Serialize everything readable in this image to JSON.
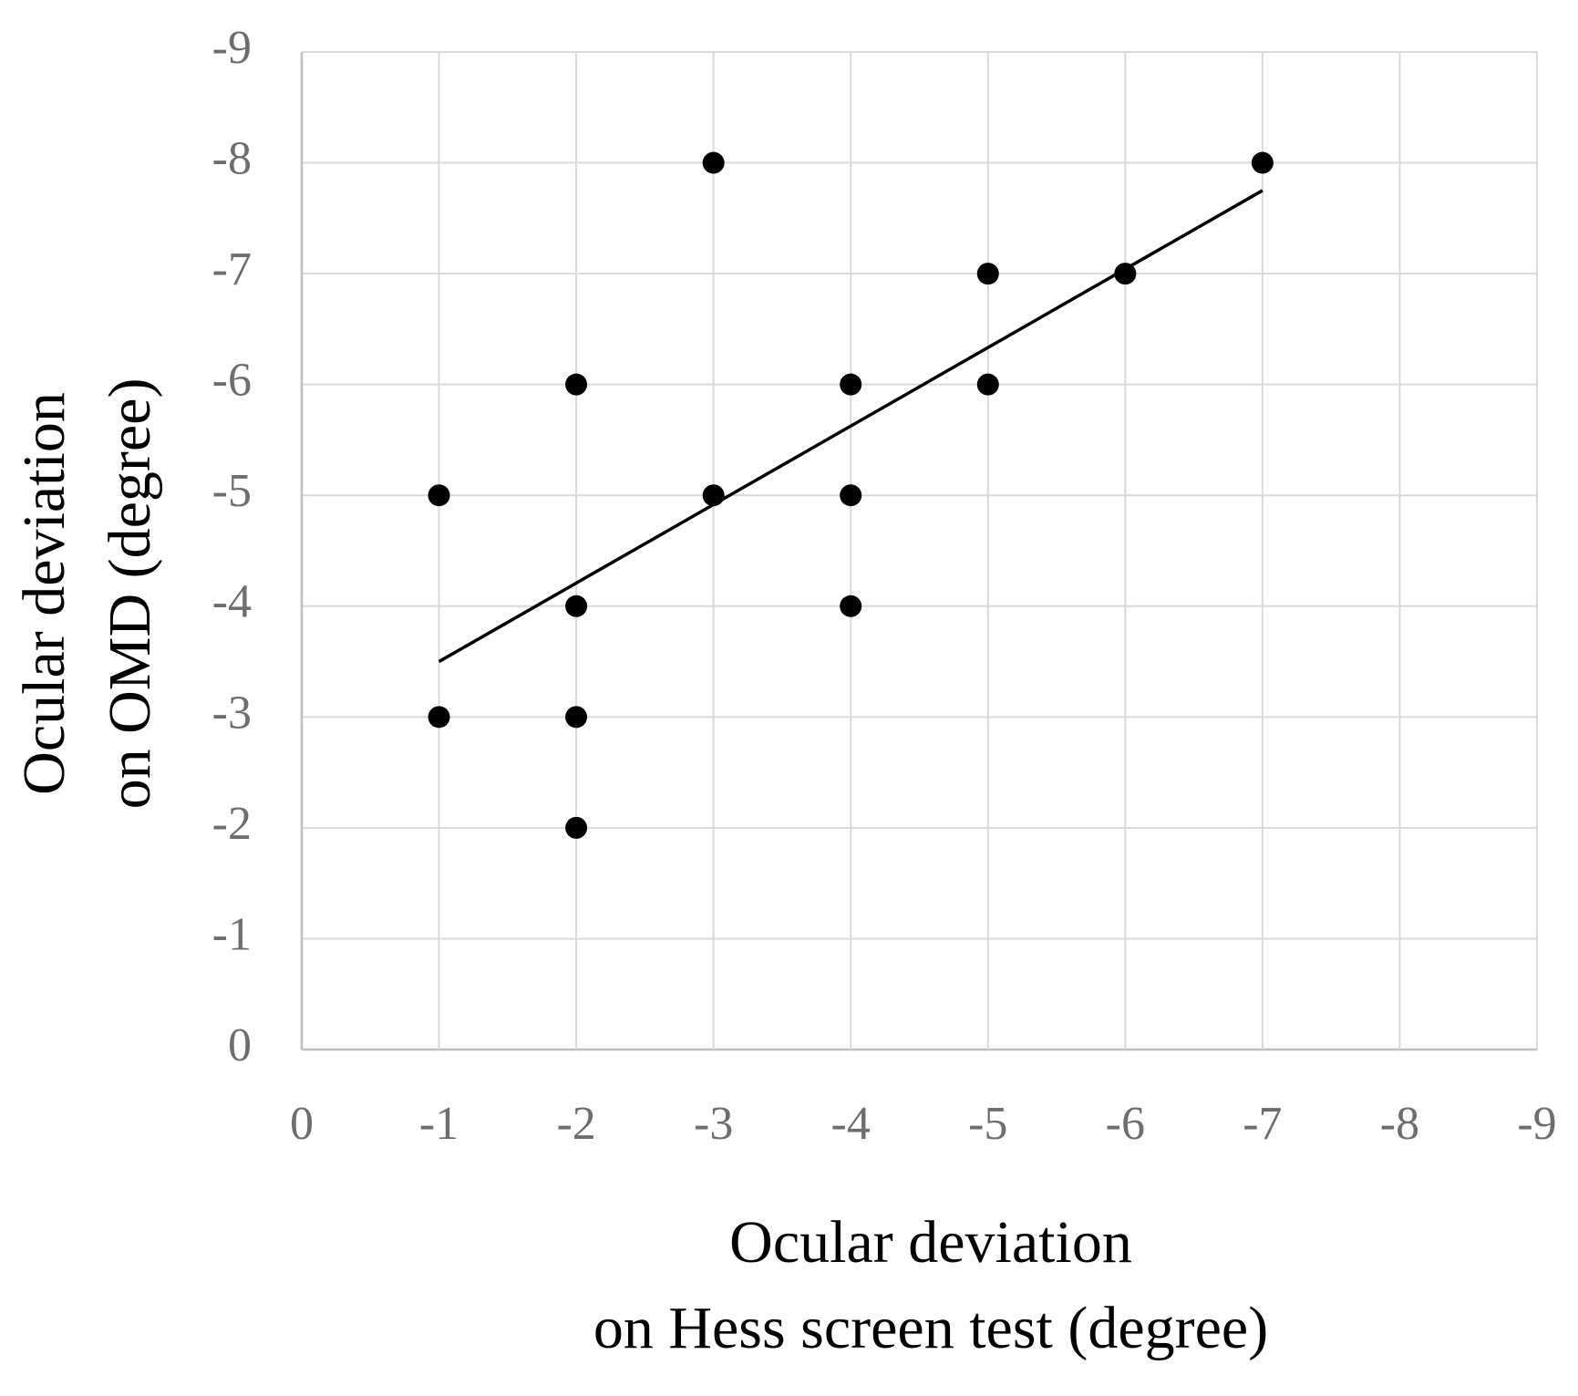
{
  "chart_data": {
    "type": "scatter",
    "xlabel": [
      "Ocular deviation",
      "on Hess screen test (degree)"
    ],
    "ylabel": [
      "Ocular deviation",
      "on OMD (degree)"
    ],
    "series": [
      {
        "color": "#000000",
        "x": [
          -1,
          -1,
          -2,
          -2,
          -2,
          -2,
          -3,
          -3,
          -4,
          -4,
          -4,
          -5,
          -5,
          -6,
          -7
        ],
        "y": [
          -5,
          -3,
          -6,
          -4,
          -3,
          -2,
          -8,
          -5,
          -6,
          -5,
          -4,
          -7,
          -6,
          -7,
          -8
        ]
      }
    ],
    "trendline": {
      "color": "#000000",
      "x": [
        -1,
        -7
      ],
      "y": [
        -3.5,
        -7.75
      ]
    },
    "xlim": [
      0,
      -9
    ],
    "ylim": [
      0,
      -9
    ],
    "xticks": [
      0,
      -1,
      -2,
      -3,
      -4,
      -5,
      -6,
      -7,
      -8,
      -9
    ],
    "yticks": [
      0,
      -1,
      -2,
      -3,
      -4,
      -5,
      -6,
      -7,
      -8,
      -9
    ],
    "grid": true
  }
}
